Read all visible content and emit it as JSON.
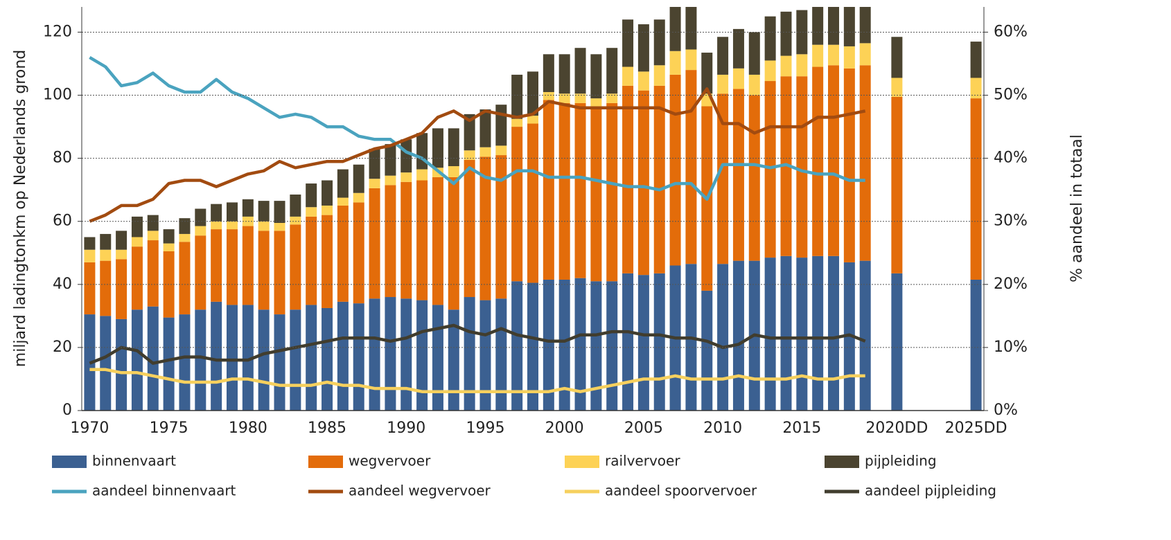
{
  "chart_data": {
    "type": "bar",
    "stacked": true,
    "y_label": "miljard ladingtonkm op Nederlands grond",
    "y2_label": "% aandeel in totaal",
    "categories": [
      "1970",
      null,
      null,
      null,
      null,
      "1975",
      null,
      null,
      null,
      null,
      "1980",
      null,
      null,
      null,
      null,
      "1985",
      null,
      null,
      null,
      null,
      "1990",
      null,
      null,
      null,
      null,
      "1995",
      null,
      null,
      null,
      null,
      "2000",
      null,
      null,
      null,
      null,
      "2005",
      null,
      null,
      null,
      null,
      "2010",
      null,
      null,
      null,
      null,
      "2015",
      null,
      null,
      null,
      null,
      null,
      "2020DD",
      null,
      null,
      null,
      null,
      "2025DD"
    ],
    "ylim": [
      0,
      128
    ],
    "yticks": [
      0,
      20,
      40,
      60,
      80,
      100,
      120
    ],
    "y2lim": [
      0,
      64
    ],
    "y2ticks": [
      {
        "value": 0,
        "label": "0%"
      },
      {
        "value": 10,
        "label": "10%"
      },
      {
        "value": 20,
        "label": "20%"
      },
      {
        "value": 30,
        "label": "30%"
      },
      {
        "value": 40,
        "label": "40%"
      },
      {
        "value": 50,
        "label": "50%"
      },
      {
        "value": 60,
        "label": "60%"
      }
    ],
    "grid": true,
    "legend": "bottom",
    "series": [
      {
        "name": "binnenvaart",
        "type": "bar",
        "color": "#3b6091",
        "values": [
          30.5,
          30,
          29,
          32,
          33,
          29.5,
          30.5,
          32,
          34.5,
          33.5,
          33.5,
          32,
          30.5,
          32,
          33.5,
          32.5,
          34.5,
          34,
          35.5,
          36,
          35.5,
          35,
          33.5,
          32,
          36,
          35,
          35.5,
          41,
          40.5,
          41.5,
          41.5,
          42,
          41,
          41,
          43.5,
          43,
          43.5,
          46,
          46.5,
          38,
          46.5,
          47.5,
          47.5,
          48.5,
          49,
          48.5,
          49,
          49,
          47,
          47.5,
          null,
          43.5,
          null,
          null,
          null,
          null,
          41.5
        ]
      },
      {
        "name": "wegvervoer",
        "type": "bar",
        "color": "#e36c0a",
        "values": [
          16.5,
          17.5,
          19,
          20,
          21,
          21,
          23,
          23.5,
          23,
          24,
          25,
          25,
          26.5,
          27,
          28,
          29.5,
          30.5,
          32,
          35,
          35.5,
          37,
          38,
          40.5,
          42,
          43.5,
          45.5,
          45.5,
          49,
          50.5,
          57,
          56,
          55.5,
          55.5,
          56.5,
          59.5,
          58.5,
          59.5,
          60.5,
          61.5,
          58.5,
          54,
          54.5,
          52.5,
          56,
          57,
          57.5,
          60,
          60.5,
          61.5,
          62,
          null,
          56,
          null,
          null,
          null,
          null,
          57.5
        ]
      },
      {
        "name": "railvervoer",
        "type": "bar",
        "color": "#fdd256",
        "values": [
          4,
          3.5,
          3,
          3,
          3,
          2.5,
          2.5,
          3,
          2.5,
          2.5,
          3,
          3,
          2.5,
          2.5,
          3,
          3,
          2.5,
          3,
          3,
          3,
          3,
          3.5,
          3,
          3.5,
          3,
          3,
          3,
          2.5,
          2.5,
          2.5,
          3,
          3,
          2.5,
          3,
          6,
          6,
          6.5,
          7.5,
          6.5,
          4,
          6,
          6.5,
          6.5,
          6.5,
          6.5,
          7,
          7,
          6.5,
          7,
          7,
          null,
          6,
          null,
          null,
          null,
          null,
          6.5
        ]
      },
      {
        "name": "pijpleiding",
        "type": "bar",
        "color": "#4b4430",
        "values": [
          4,
          5,
          6,
          6.5,
          5,
          4.5,
          5,
          5.5,
          5.5,
          6,
          5.5,
          6.5,
          7,
          7,
          7.5,
          8,
          9,
          9,
          9.5,
          10,
          10.5,
          11.5,
          12.5,
          12,
          11.5,
          12,
          13,
          14,
          14,
          12,
          12.5,
          14.5,
          14,
          14.5,
          15,
          15,
          14.5,
          16,
          16.5,
          13,
          12,
          12.5,
          13.5,
          14,
          14,
          14,
          14,
          15,
          14.5,
          13.5,
          null,
          13,
          null,
          null,
          null,
          null,
          11.5
        ]
      },
      {
        "name": "aandeel binnenvaart",
        "type": "line",
        "axis": "y2",
        "color": "#4aa3bf",
        "values": [
          56,
          54.5,
          51.5,
          52,
          53.5,
          51.5,
          50.5,
          50.5,
          52.5,
          50.5,
          49.5,
          48,
          46.5,
          47,
          46.5,
          45,
          45,
          43.5,
          43,
          43,
          41,
          40,
          38,
          36,
          38.5,
          37,
          36.5,
          38,
          38,
          37,
          37,
          37,
          36.5,
          36,
          35.5,
          35.5,
          35,
          36,
          36,
          33.5,
          39,
          39,
          39,
          38.5,
          39,
          38,
          37.5,
          37.5,
          36.5,
          36.5,
          null,
          null,
          null,
          null,
          null,
          null,
          null
        ]
      },
      {
        "name": "aandeel wegvervoer",
        "type": "line",
        "axis": "y2",
        "color": "#a24b10",
        "values": [
          30,
          31,
          32.5,
          32.5,
          33.5,
          36,
          36.5,
          36.5,
          35.5,
          36.5,
          37.5,
          38,
          39.5,
          38.5,
          39,
          39.5,
          39.5,
          40.5,
          41.5,
          42,
          43,
          44,
          46.5,
          47.5,
          46,
          47.5,
          47,
          46.5,
          47,
          49,
          48.5,
          48,
          48,
          48,
          48,
          48,
          48,
          47,
          47.5,
          51,
          45.5,
          45.5,
          44,
          45,
          45,
          45,
          46.5,
          46.5,
          47,
          47.5,
          null,
          null,
          null,
          null,
          null,
          null,
          null
        ]
      },
      {
        "name": "aandeel spoorvervoer",
        "type": "line",
        "axis": "y2",
        "color": "#f6d05e",
        "values": [
          6.5,
          6.5,
          6,
          6,
          5.5,
          5,
          4.5,
          4.5,
          4.5,
          5,
          5,
          4.5,
          4,
          4,
          4,
          4.5,
          4,
          4,
          3.5,
          3.5,
          3.5,
          3,
          3,
          3,
          3,
          3,
          3,
          3,
          3,
          3,
          3.5,
          3,
          3.5,
          4,
          4.5,
          5,
          5,
          5.5,
          5,
          5,
          5,
          5.5,
          5,
          5,
          5,
          5.5,
          5,
          5,
          5.5,
          5.5,
          null,
          null,
          null,
          null,
          null,
          null,
          null
        ]
      },
      {
        "name": "aandeel pijpleiding",
        "type": "line",
        "axis": "y2",
        "color": "#413d2e",
        "values": [
          7.5,
          8.5,
          10,
          9.5,
          7.5,
          8,
          8.5,
          8.5,
          8,
          8,
          8,
          9,
          9.5,
          10,
          10.5,
          11,
          11.5,
          11.5,
          11.5,
          11,
          11.5,
          12.5,
          13,
          13.5,
          12.5,
          12,
          13,
          12,
          11.5,
          11,
          11,
          12,
          12,
          12.5,
          12.5,
          12,
          12,
          11.5,
          11.5,
          11,
          10,
          10.5,
          12,
          11.5,
          11.5,
          11.5,
          11.5,
          11.5,
          12,
          11,
          null,
          null,
          null,
          null,
          null,
          null,
          null
        ]
      }
    ]
  }
}
